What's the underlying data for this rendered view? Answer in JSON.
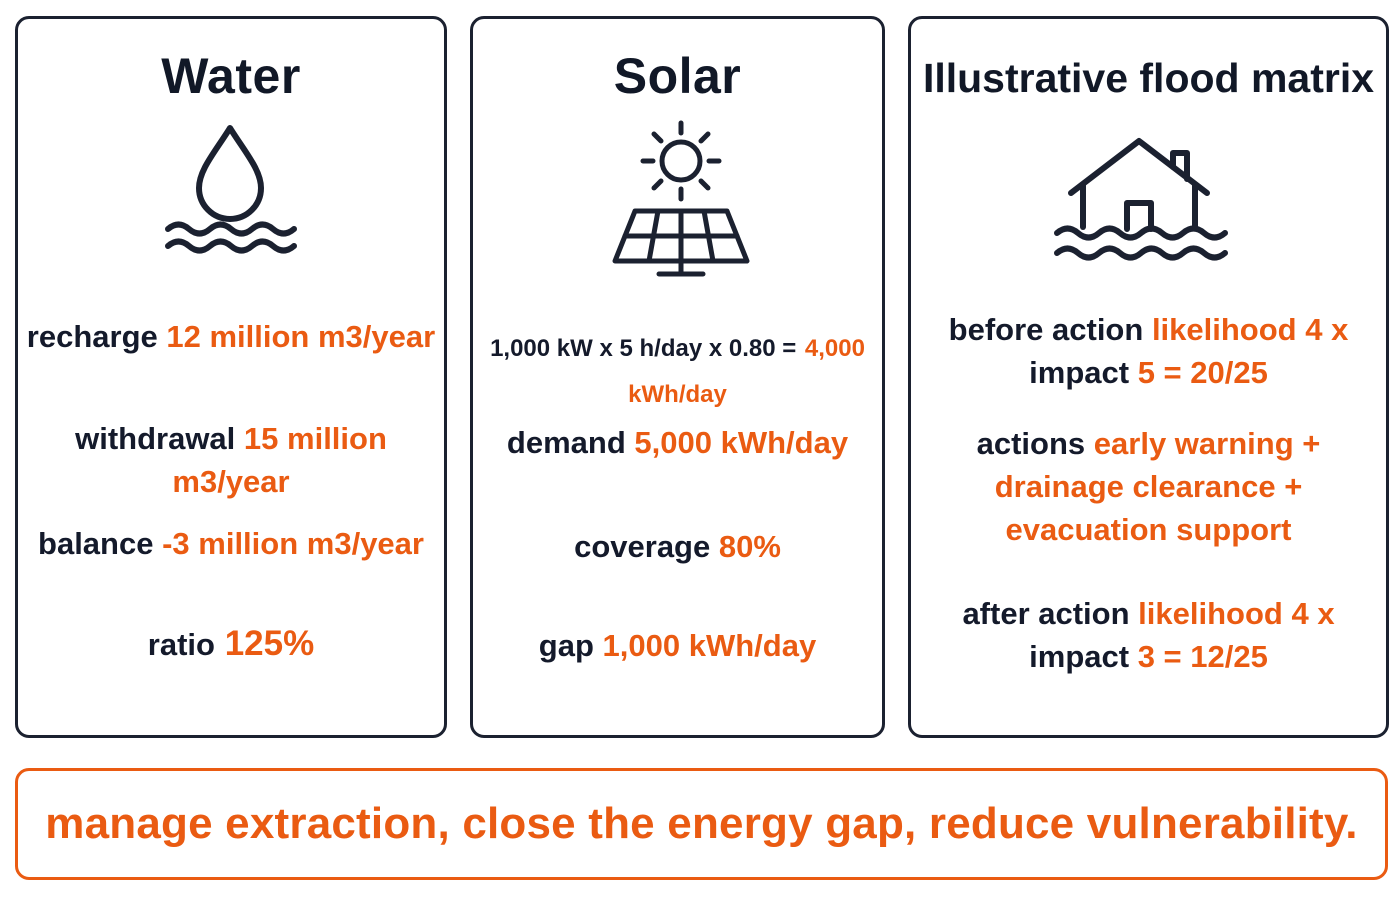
{
  "colors": {
    "accent": "#ea5b12",
    "ink": "#141a2b",
    "border": "#1b2130"
  },
  "water": {
    "title": "Water",
    "icon": "water-drop-waves-icon",
    "recharge_label": "recharge",
    "recharge_value": "12 million m3/year",
    "withdrawal_label": "withdrawal",
    "withdrawal_value": "15 million m3/year",
    "balance_label": "balance",
    "balance_value": "-3 million m3/year",
    "ratio_label": "ratio",
    "ratio_value": "125%"
  },
  "solar": {
    "title": "Solar",
    "icon": "sun-solar-panel-icon",
    "formula_label": "1,000 kW x 5 h/day x 0.80 =",
    "formula_value": "4,000 kWh/day",
    "demand_label": "demand",
    "demand_value": "5,000 kWh/day",
    "coverage_label": "coverage",
    "coverage_value": "80%",
    "gap_label": "gap",
    "gap_value": "1,000 kWh/day"
  },
  "flood": {
    "title": "Illustrative flood matrix",
    "icon": "flooded-house-icon",
    "before_label": "before action",
    "before_likelihood": "likelihood 4 x",
    "before_impact_label": "impact",
    "before_impact_value": "5 = 20/25",
    "actions_label": "actions",
    "actions_line1": "early warning +",
    "actions_line2": "drainage clearance +",
    "actions_line3": "evacuation support",
    "after_label": "after action",
    "after_likelihood": "likelihood 4 x",
    "after_impact_label": "impact",
    "after_impact_value": "3 = 12/25"
  },
  "banner": {
    "text": "manage extraction, close the energy gap, reduce vulnerability."
  }
}
